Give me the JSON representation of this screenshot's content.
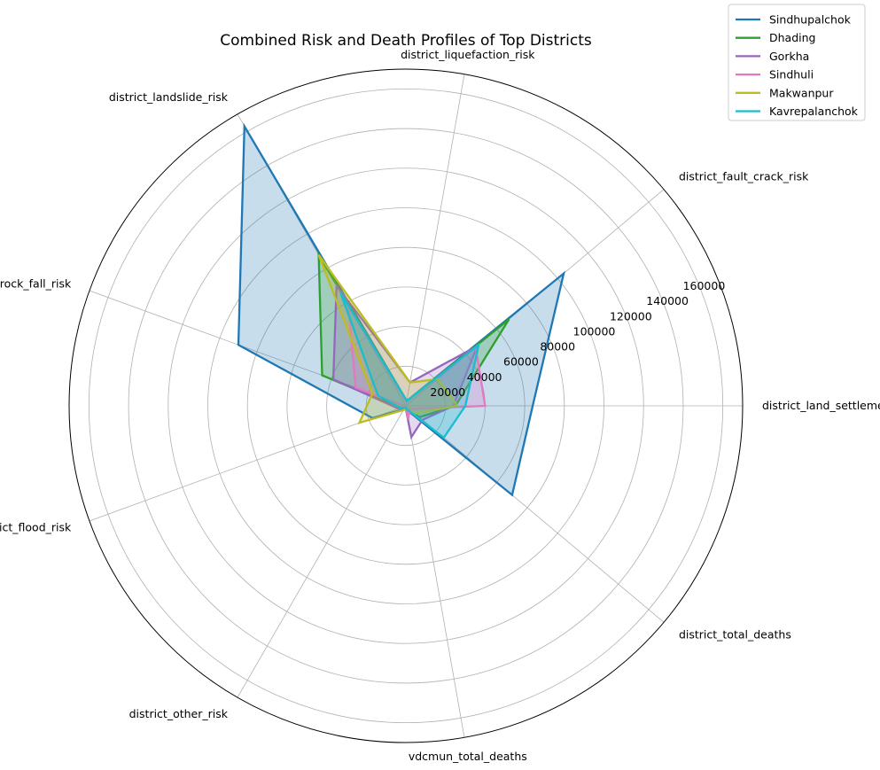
{
  "chart_data": {
    "type": "radar",
    "title": "Combined Risk and Death Profiles of Top Districts",
    "axes": [
      "district_land_settlement_risk",
      "district_fault_crack_risk",
      "district_liquefaction_risk",
      "district_landslide_risk",
      "district_rock_fall_risk",
      "district_flood_risk",
      "district_other_risk",
      "vdcmun_total_deaths",
      "district_total_deaths"
    ],
    "rticks": [
      20000,
      40000,
      60000,
      80000,
      100000,
      120000,
      140000,
      160000
    ],
    "rticks_labels": [
      "20000",
      "40000",
      "60000",
      "80000",
      "100000",
      "120000",
      "140000",
      "160000"
    ],
    "rlim": [
      0,
      170000
    ],
    "grid": true,
    "legend_position": "upper right (outside)",
    "series": [
      {
        "name": "Sindhupalchok",
        "color": "#1f77b4",
        "filled": true,
        "values": [
          64000,
          104000,
          2500,
          163000,
          90000,
          18000,
          2000,
          2000,
          70000
        ]
      },
      {
        "name": "Dhading",
        "color": "#2ca02c",
        "filled": false,
        "values": [
          25000,
          68000,
          2500,
          88000,
          45000,
          3000,
          1500,
          1500,
          9000
        ]
      },
      {
        "name": "Gorkha",
        "color": "#9467bd",
        "filled": false,
        "values": [
          24000,
          47000,
          12000,
          70000,
          39000,
          4000,
          500,
          16000,
          11000
        ]
      },
      {
        "name": "Sindhuli",
        "color": "#e377c2",
        "filled": false,
        "values": [
          40000,
          46000,
          2000,
          58000,
          27000,
          1000,
          300,
          7000,
          2500
        ]
      },
      {
        "name": "Makwanpur",
        "color": "#bcbd22",
        "filled": false,
        "values": [
          26000,
          21000,
          12000,
          88000,
          18000,
          25000,
          2500,
          1500,
          6000
        ]
      },
      {
        "name": "Kavrepalanchok",
        "color": "#17becf",
        "filled": false,
        "values": [
          30000,
          48000,
          2500,
          66000,
          15000,
          3000,
          1000,
          1500,
          25000
        ]
      }
    ]
  }
}
